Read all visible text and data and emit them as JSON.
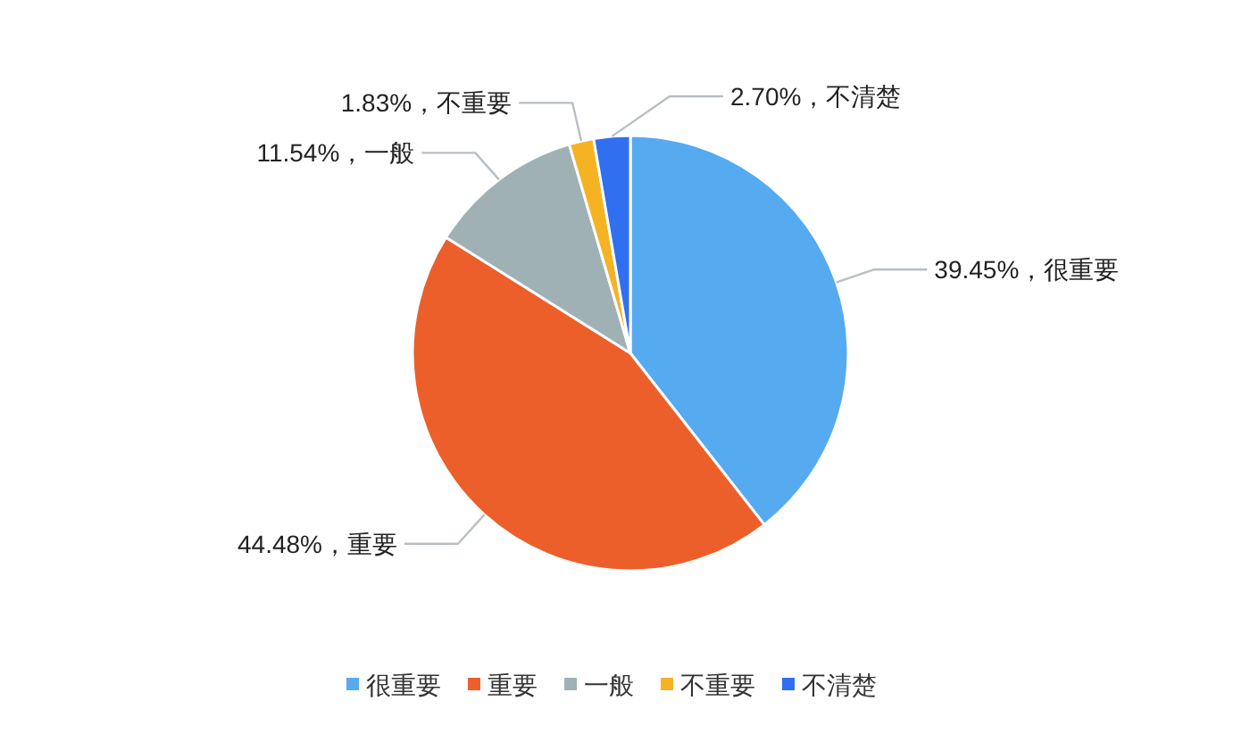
{
  "chart_data": {
    "type": "pie",
    "categories": [
      "很重要",
      "重要",
      "一般",
      "不重要",
      "不清楚"
    ],
    "values": [
      39.45,
      44.48,
      11.54,
      1.83,
      2.7
    ],
    "colors": [
      "#56aaf0",
      "#ec5f2b",
      "#a0b1b6",
      "#f5b324",
      "#2f6ff0"
    ],
    "value_labels": [
      "39.45%，很重要",
      "44.48%，重要",
      "11.54%，一般",
      "1.83%，不重要",
      "2.70%，不清楚"
    ],
    "legend": "bottom"
  }
}
